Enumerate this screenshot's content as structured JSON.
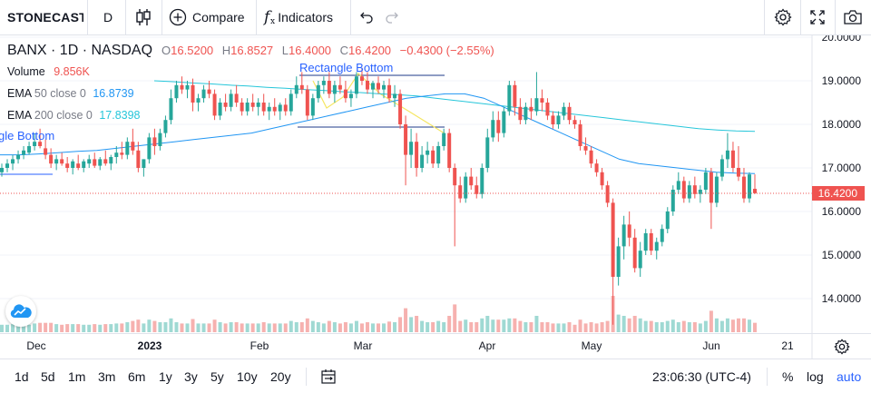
{
  "toolbar": {
    "symbol": "STONECAST",
    "interval": "D",
    "compare_label": "Compare",
    "indicators_label": "Indicators",
    "chart_type_icon": "candles-icon",
    "undo_icon": "undo-icon",
    "redo_icon": "redo-icon",
    "settings_icon": "gear-icon",
    "fullscreen_icon": "fullscreen-icon",
    "snapshot_icon": "camera-icon"
  },
  "legend": {
    "title": "BANX · 1D · NASDAQ",
    "o_label": "O",
    "o_value": "16.5200",
    "h_label": "H",
    "h_value": "16.8527",
    "l_label": "L",
    "l_value": "16.4000",
    "c_label": "C",
    "c_value": "16.4200",
    "change": "−0.4300 (−2.55%)",
    "volume_name": "Volume",
    "volume_value": "9.856K",
    "ema50_name": "EMA",
    "ema50_params": "50 close 0",
    "ema50_value": "16.8739",
    "ema200_name": "EMA",
    "ema200_params": "200 close 0",
    "ema200_value": "17.8398"
  },
  "drawings": {
    "rect_label_1": "Rectangle Bottom",
    "rect_label_2": "gle Bottom"
  },
  "colors": {
    "up": "#26a69a",
    "down": "#ef5350",
    "ema50": "#2196f3",
    "ema200": "#26c6da",
    "drawing": "#2962ff",
    "trend": "#f5e663"
  },
  "price_axis": {
    "ticks": [
      "20.0000",
      "19.0000",
      "18.0000",
      "17.0000",
      "16.0000",
      "15.0000",
      "14.0000"
    ],
    "last_price": "16.4200"
  },
  "time_axis": {
    "labels": [
      "Dec",
      "2023",
      "Feb",
      "Mar",
      "Apr",
      "May",
      "Jun",
      "21"
    ]
  },
  "bottombar": {
    "ranges": [
      "1d",
      "5d",
      "1m",
      "3m",
      "6m",
      "1y",
      "3y",
      "5y",
      "10y",
      "20y"
    ],
    "time": "23:06:30 (UTC-4)",
    "percent": "%",
    "log": "log",
    "auto": "auto"
  },
  "chart_data": {
    "type": "candlestick",
    "symbol": "BANX",
    "interval": "1D",
    "exchange": "NASDAQ",
    "ylim": [
      13.3,
      20.1
    ],
    "last_close": 16.42,
    "ema50_last": 16.8739,
    "ema200_last": 17.8398,
    "candles": [
      {
        "date": "Nov 21",
        "o": 16.9,
        "h": 17.1,
        "l": 16.8,
        "c": 17.0
      },
      {
        "date": "Nov 22",
        "o": 17.0,
        "h": 17.2,
        "l": 16.9,
        "c": 17.1
      },
      {
        "date": "Nov 23",
        "o": 17.1,
        "h": 17.3,
        "l": 16.95,
        "c": 17.2
      },
      {
        "date": "Nov 25",
        "o": 17.2,
        "h": 17.4,
        "l": 17.1,
        "c": 17.3
      },
      {
        "date": "Nov 28",
        "o": 17.3,
        "h": 17.5,
        "l": 17.2,
        "c": 17.4
      },
      {
        "date": "Nov 29",
        "o": 17.35,
        "h": 17.6,
        "l": 17.3,
        "c": 17.5
      },
      {
        "date": "Nov 30",
        "o": 17.5,
        "h": 17.8,
        "l": 17.4,
        "c": 17.6
      },
      {
        "date": "Dec 01",
        "o": 17.6,
        "h": 17.9,
        "l": 17.45,
        "c": 17.5
      },
      {
        "date": "Dec 02",
        "o": 17.45,
        "h": 17.65,
        "l": 17.2,
        "c": 17.3
      },
      {
        "date": "Dec 05",
        "o": 17.3,
        "h": 17.45,
        "l": 17.0,
        "c": 17.1
      },
      {
        "date": "Dec 06",
        "o": 17.1,
        "h": 17.3,
        "l": 16.95,
        "c": 17.2
      },
      {
        "date": "Dec 07",
        "o": 17.2,
        "h": 17.35,
        "l": 17.05,
        "c": 17.1
      },
      {
        "date": "Dec 08",
        "o": 17.1,
        "h": 17.25,
        "l": 16.9,
        "c": 17.0
      },
      {
        "date": "Dec 09",
        "o": 17.0,
        "h": 17.2,
        "l": 16.85,
        "c": 17.15
      },
      {
        "date": "Dec 12",
        "o": 17.1,
        "h": 17.3,
        "l": 16.95,
        "c": 17.0
      },
      {
        "date": "Dec 13",
        "o": 17.0,
        "h": 17.2,
        "l": 16.9,
        "c": 17.15
      },
      {
        "date": "Dec 14",
        "o": 17.1,
        "h": 17.3,
        "l": 17.0,
        "c": 17.2
      },
      {
        "date": "Dec 15",
        "o": 17.2,
        "h": 17.35,
        "l": 17.0,
        "c": 17.05
      },
      {
        "date": "Dec 16",
        "o": 17.05,
        "h": 17.25,
        "l": 16.95,
        "c": 17.2
      },
      {
        "date": "Dec 19",
        "o": 17.2,
        "h": 17.4,
        "l": 17.05,
        "c": 17.1
      },
      {
        "date": "Dec 20",
        "o": 17.1,
        "h": 17.3,
        "l": 16.95,
        "c": 17.25
      },
      {
        "date": "Dec 21",
        "o": 17.25,
        "h": 17.5,
        "l": 17.1,
        "c": 17.35
      },
      {
        "date": "Dec 22",
        "o": 17.35,
        "h": 17.6,
        "l": 17.2,
        "c": 17.3
      },
      {
        "date": "Dec 23",
        "o": 17.3,
        "h": 17.7,
        "l": 17.2,
        "c": 17.6
      },
      {
        "date": "Dec 27",
        "o": 17.6,
        "h": 17.9,
        "l": 17.3,
        "c": 17.4
      },
      {
        "date": "Dec 28",
        "o": 17.4,
        "h": 17.6,
        "l": 16.9,
        "c": 17.0
      },
      {
        "date": "Dec 29",
        "o": 17.0,
        "h": 17.2,
        "l": 16.8,
        "c": 17.2
      },
      {
        "date": "Dec 30",
        "o": 17.2,
        "h": 17.8,
        "l": 17.1,
        "c": 17.7
      },
      {
        "date": "Jan 03",
        "o": 17.7,
        "h": 17.9,
        "l": 17.3,
        "c": 17.5
      },
      {
        "date": "Jan 04",
        "o": 17.5,
        "h": 17.9,
        "l": 17.4,
        "c": 17.8
      },
      {
        "date": "Jan 05",
        "o": 17.8,
        "h": 18.2,
        "l": 17.7,
        "c": 18.1
      },
      {
        "date": "Jan 06",
        "o": 18.1,
        "h": 18.8,
        "l": 18.0,
        "c": 18.6
      },
      {
        "date": "Jan 09",
        "o": 18.6,
        "h": 19.0,
        "l": 18.5,
        "c": 18.9
      },
      {
        "date": "Jan 10",
        "o": 18.9,
        "h": 19.1,
        "l": 18.7,
        "c": 18.8
      },
      {
        "date": "Jan 11",
        "o": 18.8,
        "h": 19.0,
        "l": 18.6,
        "c": 18.9
      },
      {
        "date": "Jan 12",
        "o": 18.9,
        "h": 19.05,
        "l": 18.3,
        "c": 18.5
      },
      {
        "date": "Jan 13",
        "o": 18.5,
        "h": 18.7,
        "l": 18.3,
        "c": 18.6
      },
      {
        "date": "Jan 17",
        "o": 18.6,
        "h": 18.9,
        "l": 18.5,
        "c": 18.8
      },
      {
        "date": "Jan 18",
        "o": 18.8,
        "h": 19.0,
        "l": 18.6,
        "c": 18.7
      },
      {
        "date": "Jan 19",
        "o": 18.7,
        "h": 18.8,
        "l": 18.1,
        "c": 18.2
      },
      {
        "date": "Jan 20",
        "o": 18.2,
        "h": 18.6,
        "l": 18.1,
        "c": 18.5
      },
      {
        "date": "Jan 23",
        "o": 18.5,
        "h": 18.7,
        "l": 18.3,
        "c": 18.4
      },
      {
        "date": "Jan 24",
        "o": 18.4,
        "h": 18.8,
        "l": 18.3,
        "c": 18.7
      },
      {
        "date": "Jan 25",
        "o": 18.7,
        "h": 18.9,
        "l": 18.4,
        "c": 18.5
      },
      {
        "date": "Jan 26",
        "o": 18.5,
        "h": 18.6,
        "l": 18.2,
        "c": 18.3
      },
      {
        "date": "Jan 27",
        "o": 18.3,
        "h": 18.6,
        "l": 18.2,
        "c": 18.5
      },
      {
        "date": "Jan 30",
        "o": 18.5,
        "h": 18.7,
        "l": 18.3,
        "c": 18.4
      },
      {
        "date": "Jan 31",
        "o": 18.4,
        "h": 18.6,
        "l": 18.2,
        "c": 18.5
      },
      {
        "date": "Feb 01",
        "o": 18.5,
        "h": 18.7,
        "l": 18.2,
        "c": 18.3
      },
      {
        "date": "Feb 02",
        "o": 18.3,
        "h": 18.5,
        "l": 18.1,
        "c": 18.4
      },
      {
        "date": "Feb 03",
        "o": 18.4,
        "h": 18.6,
        "l": 18.2,
        "c": 18.3
      },
      {
        "date": "Feb 06",
        "o": 18.3,
        "h": 18.5,
        "l": 18.1,
        "c": 18.45
      },
      {
        "date": "Feb 07",
        "o": 18.45,
        "h": 18.6,
        "l": 18.2,
        "c": 18.3
      },
      {
        "date": "Feb 08",
        "o": 18.3,
        "h": 18.8,
        "l": 18.2,
        "c": 18.7
      },
      {
        "date": "Feb 09",
        "o": 18.7,
        "h": 19.1,
        "l": 18.6,
        "c": 18.9
      },
      {
        "date": "Feb 10",
        "o": 18.9,
        "h": 19.2,
        "l": 18.7,
        "c": 18.8
      },
      {
        "date": "Feb 13",
        "o": 18.8,
        "h": 18.9,
        "l": 18.1,
        "c": 18.2
      },
      {
        "date": "Feb 14",
        "o": 18.2,
        "h": 18.7,
        "l": 18.1,
        "c": 18.6
      },
      {
        "date": "Feb 15",
        "o": 18.6,
        "h": 19.0,
        "l": 18.5,
        "c": 18.9
      },
      {
        "date": "Feb 16",
        "o": 18.9,
        "h": 19.1,
        "l": 18.7,
        "c": 19.0
      },
      {
        "date": "Feb 17",
        "o": 19.0,
        "h": 19.2,
        "l": 18.6,
        "c": 18.7
      },
      {
        "date": "Feb 21",
        "o": 18.7,
        "h": 19.0,
        "l": 18.5,
        "c": 18.9
      },
      {
        "date": "Feb 22",
        "o": 18.9,
        "h": 19.1,
        "l": 18.7,
        "c": 18.8
      },
      {
        "date": "Feb 23",
        "o": 18.8,
        "h": 19.0,
        "l": 18.5,
        "c": 18.6
      },
      {
        "date": "Feb 24",
        "o": 18.6,
        "h": 18.8,
        "l": 18.4,
        "c": 18.7
      },
      {
        "date": "Feb 27",
        "o": 18.7,
        "h": 19.2,
        "l": 18.6,
        "c": 19.1
      },
      {
        "date": "Feb 28",
        "o": 19.1,
        "h": 19.3,
        "l": 18.9,
        "c": 19.0
      },
      {
        "date": "Mar 01",
        "o": 19.0,
        "h": 19.2,
        "l": 18.7,
        "c": 18.8
      },
      {
        "date": "Mar 02",
        "o": 18.8,
        "h": 19.0,
        "l": 18.6,
        "c": 18.95
      },
      {
        "date": "Mar 03",
        "o": 18.95,
        "h": 19.1,
        "l": 18.7,
        "c": 18.8
      },
      {
        "date": "Mar 06",
        "o": 18.8,
        "h": 19.0,
        "l": 18.6,
        "c": 18.9
      },
      {
        "date": "Mar 07",
        "o": 18.9,
        "h": 19.05,
        "l": 18.5,
        "c": 18.6
      },
      {
        "date": "Mar 08",
        "o": 18.6,
        "h": 18.9,
        "l": 18.4,
        "c": 18.7
      },
      {
        "date": "Mar 09",
        "o": 18.7,
        "h": 18.8,
        "l": 17.9,
        "c": 18.0
      },
      {
        "date": "Mar 10",
        "o": 18.0,
        "h": 18.2,
        "l": 16.6,
        "c": 17.3
      },
      {
        "date": "Mar 13",
        "o": 17.3,
        "h": 17.9,
        "l": 17.0,
        "c": 17.6
      },
      {
        "date": "Mar 14",
        "o": 17.6,
        "h": 17.8,
        "l": 16.8,
        "c": 17.0
      },
      {
        "date": "Mar 15",
        "o": 17.0,
        "h": 17.5,
        "l": 16.9,
        "c": 17.3
      },
      {
        "date": "Mar 16",
        "o": 17.3,
        "h": 17.6,
        "l": 17.1,
        "c": 17.4
      },
      {
        "date": "Mar 17",
        "o": 17.4,
        "h": 17.5,
        "l": 17.0,
        "c": 17.1
      },
      {
        "date": "Mar 20",
        "o": 17.1,
        "h": 17.6,
        "l": 17.0,
        "c": 17.5
      },
      {
        "date": "Mar 21",
        "o": 17.5,
        "h": 17.9,
        "l": 17.4,
        "c": 17.8
      },
      {
        "date": "Mar 22",
        "o": 17.8,
        "h": 17.9,
        "l": 16.9,
        "c": 17.0
      },
      {
        "date": "Mar 23",
        "o": 17.0,
        "h": 17.1,
        "l": 15.2,
        "c": 16.6
      },
      {
        "date": "Mar 24",
        "o": 16.6,
        "h": 16.8,
        "l": 16.2,
        "c": 16.3
      },
      {
        "date": "Mar 27",
        "o": 16.3,
        "h": 16.9,
        "l": 16.2,
        "c": 16.8
      },
      {
        "date": "Mar 28",
        "o": 16.8,
        "h": 17.0,
        "l": 16.5,
        "c": 16.6
      },
      {
        "date": "Mar 29",
        "o": 16.6,
        "h": 16.8,
        "l": 16.3,
        "c": 16.4
      },
      {
        "date": "Mar 30",
        "o": 16.4,
        "h": 17.1,
        "l": 16.3,
        "c": 17.0
      },
      {
        "date": "Mar 31",
        "o": 17.0,
        "h": 17.9,
        "l": 16.9,
        "c": 17.7
      },
      {
        "date": "Apr 03",
        "o": 17.7,
        "h": 18.3,
        "l": 17.6,
        "c": 18.1
      },
      {
        "date": "Apr 04",
        "o": 18.1,
        "h": 18.3,
        "l": 17.6,
        "c": 17.8
      },
      {
        "date": "Apr 05",
        "o": 17.8,
        "h": 18.4,
        "l": 17.7,
        "c": 18.3
      },
      {
        "date": "Apr 06",
        "o": 18.3,
        "h": 19.0,
        "l": 18.2,
        "c": 18.9
      },
      {
        "date": "Apr 10",
        "o": 18.9,
        "h": 19.0,
        "l": 18.2,
        "c": 18.4
      },
      {
        "date": "Apr 11",
        "o": 18.4,
        "h": 18.6,
        "l": 18.0,
        "c": 18.1
      },
      {
        "date": "Apr 12",
        "o": 18.1,
        "h": 18.5,
        "l": 18.0,
        "c": 18.4
      },
      {
        "date": "Apr 13",
        "o": 18.4,
        "h": 18.6,
        "l": 18.1,
        "c": 18.3
      },
      {
        "date": "Apr 14",
        "o": 18.3,
        "h": 19.2,
        "l": 18.2,
        "c": 18.6
      },
      {
        "date": "Apr 17",
        "o": 18.6,
        "h": 18.8,
        "l": 18.3,
        "c": 18.5
      },
      {
        "date": "Apr 18",
        "o": 18.5,
        "h": 18.6,
        "l": 18.1,
        "c": 18.2
      },
      {
        "date": "Apr 19",
        "o": 18.2,
        "h": 18.3,
        "l": 17.9,
        "c": 18.0
      },
      {
        "date": "Apr 20",
        "o": 18.0,
        "h": 18.3,
        "l": 17.9,
        "c": 18.2
      },
      {
        "date": "Apr 21",
        "o": 18.2,
        "h": 18.5,
        "l": 18.1,
        "c": 18.4
      },
      {
        "date": "Apr 24",
        "o": 18.4,
        "h": 18.5,
        "l": 18.0,
        "c": 18.1
      },
      {
        "date": "Apr 25",
        "o": 18.1,
        "h": 18.2,
        "l": 17.9,
        "c": 18.0
      },
      {
        "date": "Apr 26",
        "o": 18.0,
        "h": 18.1,
        "l": 17.4,
        "c": 17.5
      },
      {
        "date": "Apr 27",
        "o": 17.5,
        "h": 17.7,
        "l": 17.3,
        "c": 17.4
      },
      {
        "date": "Apr 28",
        "o": 17.4,
        "h": 17.5,
        "l": 17.0,
        "c": 17.1
      },
      {
        "date": "May 01",
        "o": 17.1,
        "h": 17.2,
        "l": 16.8,
        "c": 16.9
      },
      {
        "date": "May 02",
        "o": 16.9,
        "h": 17.0,
        "l": 16.5,
        "c": 16.6
      },
      {
        "date": "May 03",
        "o": 16.6,
        "h": 16.7,
        "l": 16.1,
        "c": 16.2
      },
      {
        "date": "May 04",
        "o": 16.2,
        "h": 16.3,
        "l": 13.4,
        "c": 14.5
      },
      {
        "date": "May 05",
        "o": 14.5,
        "h": 15.4,
        "l": 14.3,
        "c": 15.2
      },
      {
        "date": "May 08",
        "o": 15.2,
        "h": 15.9,
        "l": 14.9,
        "c": 15.7
      },
      {
        "date": "May 09",
        "o": 15.7,
        "h": 16.0,
        "l": 15.2,
        "c": 15.4
      },
      {
        "date": "May 10",
        "o": 15.4,
        "h": 15.6,
        "l": 14.6,
        "c": 14.7
      },
      {
        "date": "May 11",
        "o": 14.7,
        "h": 15.3,
        "l": 14.5,
        "c": 15.1
      },
      {
        "date": "May 12",
        "o": 15.1,
        "h": 15.6,
        "l": 15.0,
        "c": 15.5
      },
      {
        "date": "May 15",
        "o": 15.5,
        "h": 15.6,
        "l": 15.0,
        "c": 15.1
      },
      {
        "date": "May 16",
        "o": 15.1,
        "h": 15.4,
        "l": 14.9,
        "c": 15.3
      },
      {
        "date": "May 17",
        "o": 15.3,
        "h": 15.7,
        "l": 15.2,
        "c": 15.6
      },
      {
        "date": "May 18",
        "o": 15.6,
        "h": 16.1,
        "l": 15.5,
        "c": 16.0
      },
      {
        "date": "May 19",
        "o": 16.0,
        "h": 16.6,
        "l": 15.9,
        "c": 16.5
      },
      {
        "date": "May 22",
        "o": 16.5,
        "h": 16.9,
        "l": 16.4,
        "c": 16.7
      },
      {
        "date": "May 23",
        "o": 16.7,
        "h": 16.8,
        "l": 16.2,
        "c": 16.3
      },
      {
        "date": "May 24",
        "o": 16.3,
        "h": 16.7,
        "l": 16.2,
        "c": 16.6
      },
      {
        "date": "May 25",
        "o": 16.6,
        "h": 16.8,
        "l": 16.3,
        "c": 16.4
      },
      {
        "date": "May 26",
        "o": 16.4,
        "h": 16.6,
        "l": 16.2,
        "c": 16.5
      },
      {
        "date": "May 30",
        "o": 16.5,
        "h": 17.0,
        "l": 16.4,
        "c": 16.9
      },
      {
        "date": "May 31",
        "o": 16.9,
        "h": 17.0,
        "l": 15.6,
        "c": 16.2
      },
      {
        "date": "Jun 01",
        "o": 16.2,
        "h": 16.9,
        "l": 16.1,
        "c": 16.8
      },
      {
        "date": "Jun 02",
        "o": 16.8,
        "h": 17.3,
        "l": 16.7,
        "c": 17.2
      },
      {
        "date": "Jun 05",
        "o": 17.2,
        "h": 17.8,
        "l": 17.0,
        "c": 17.4
      },
      {
        "date": "Jun 06",
        "o": 17.4,
        "h": 17.6,
        "l": 16.9,
        "c": 17.0
      },
      {
        "date": "Jun 07",
        "o": 17.0,
        "h": 17.5,
        "l": 16.7,
        "c": 16.8
      },
      {
        "date": "Jun 08",
        "o": 16.8,
        "h": 17.0,
        "l": 16.2,
        "c": 16.3
      },
      {
        "date": "Jun 09",
        "o": 16.3,
        "h": 16.9,
        "l": 16.2,
        "c": 16.85
      },
      {
        "date": "Jun 12",
        "o": 16.52,
        "h": 16.8527,
        "l": 16.4,
        "c": 16.42
      }
    ],
    "ema50": [
      17.3,
      17.3,
      17.32,
      17.35,
      17.38,
      17.4,
      17.45,
      17.5,
      17.55,
      17.6,
      17.65,
      17.7,
      17.75,
      17.8,
      17.9,
      18.0,
      18.1,
      18.2,
      18.3,
      18.4,
      18.5,
      18.6,
      18.65,
      18.7,
      18.7,
      18.6,
      18.4,
      18.2,
      18.0,
      17.8,
      17.6,
      17.4,
      17.2,
      17.1,
      17.05,
      17.0,
      16.95,
      16.9,
      16.88,
      16.87
    ],
    "ema200": [
      19.0,
      18.98,
      18.95,
      18.93,
      18.9,
      18.88,
      18.85,
      18.83,
      18.8,
      18.78,
      18.75,
      18.73,
      18.7,
      18.68,
      18.65,
      18.6,
      18.55,
      18.5,
      18.45,
      18.4,
      18.35,
      18.3,
      18.25,
      18.2,
      18.15,
      18.1,
      18.05,
      18.0,
      17.95,
      17.9,
      17.87,
      17.85,
      17.84
    ]
  }
}
